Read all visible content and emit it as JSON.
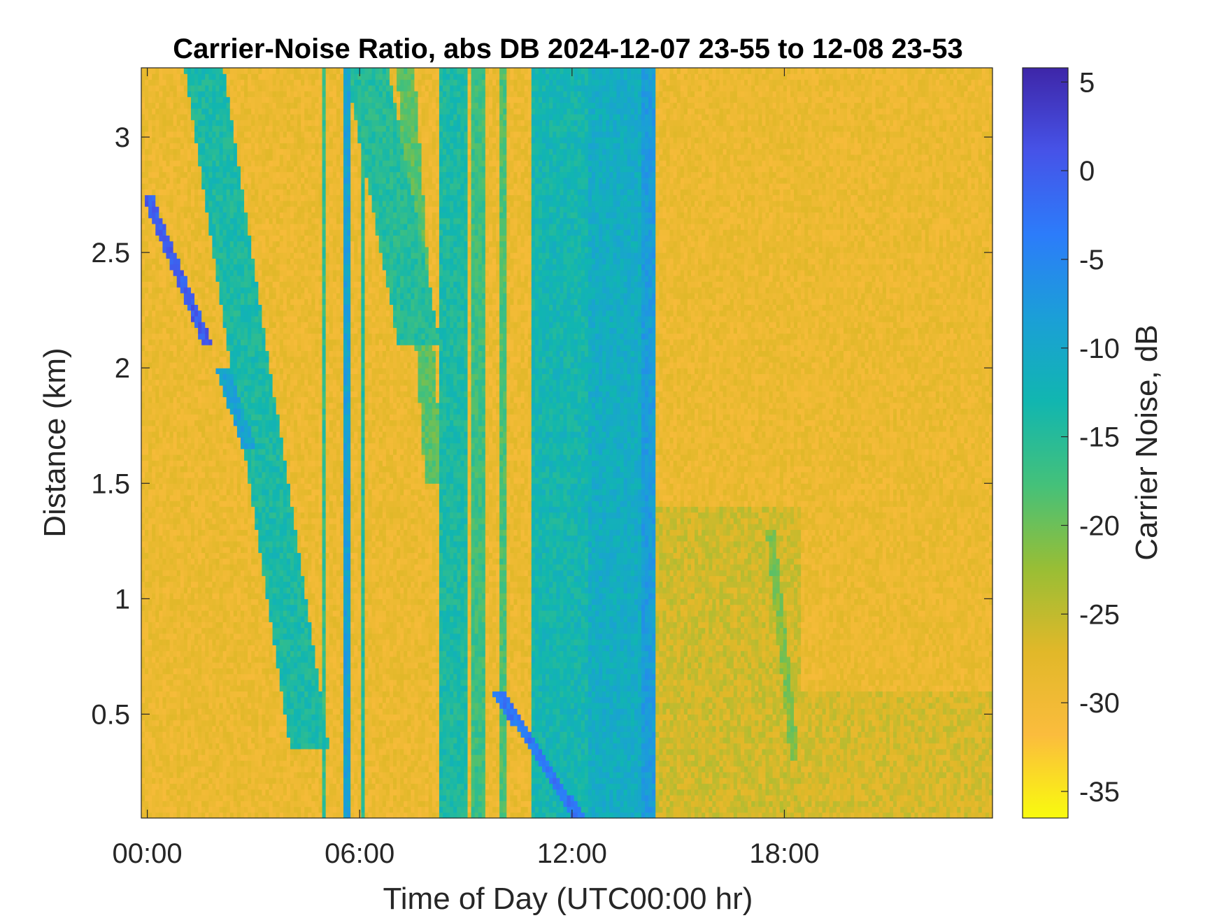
{
  "chart_data": {
    "type": "heatmap",
    "title": "Carrier-Noise Ratio, abs DB 2024-12-07 23-55 to 12-08 23-53",
    "xlabel": "Time of Day (UTC00:00 hr)",
    "ylabel": "Distance (km)",
    "colorbar_label": "Carrier Noise, dB",
    "xlim": [
      -0.17,
      23.88
    ],
    "ylim": [
      0.05,
      3.3
    ],
    "clim": [
      -36.5,
      5.8
    ],
    "x_ticks": [
      0,
      6,
      12,
      18
    ],
    "x_tick_labels": [
      "00:00",
      "06:00",
      "12:00",
      "18:00"
    ],
    "y_ticks": [
      0.5,
      1,
      1.5,
      2,
      2.5,
      3
    ],
    "y_tick_labels": [
      "0.5",
      "1",
      "1.5",
      "2",
      "2.5",
      "3"
    ],
    "colorbar_ticks": [
      5,
      0,
      -5,
      -10,
      -15,
      -20,
      -25,
      -30,
      -35
    ],
    "colorbar_tick_labels": [
      "5",
      "0",
      "-5",
      "-10",
      "-15",
      "-20",
      "-25",
      "-30",
      "-35"
    ],
    "colormap": [
      "#f9fb0e",
      "#fbbc3d",
      "#e1b829",
      "#98be35",
      "#44c17a",
      "#11b6b0",
      "#1b9fd7",
      "#2c7cfa",
      "#4653e8",
      "#3e26a8"
    ],
    "background_level_db": -29,
    "features": [
      {
        "kind": "band",
        "t_start": 8.2,
        "t_end": 9.05,
        "db": -14
      },
      {
        "kind": "band",
        "t_start": 9.1,
        "t_end": 9.6,
        "db": -17
      },
      {
        "kind": "band",
        "t_start": 10.9,
        "t_end": 12.5,
        "db": -13
      },
      {
        "kind": "band",
        "t_start": 12.5,
        "t_end": 14.35,
        "db": -11
      },
      {
        "kind": "band",
        "t_start": 14.0,
        "t_end": 14.35,
        "db": -8
      },
      {
        "kind": "band",
        "t_start": 5.55,
        "t_end": 5.75,
        "db": -9
      },
      {
        "kind": "band",
        "t_start": 4.9,
        "t_end": 5.05,
        "db": -16
      },
      {
        "kind": "band",
        "t_start": 6.05,
        "t_end": 6.15,
        "db": -15
      },
      {
        "kind": "band",
        "t_start": 9.95,
        "t_end": 10.15,
        "db": -18
      },
      {
        "kind": "slant",
        "t_top": 1.6,
        "t_bottom": 4.6,
        "d_top": 3.3,
        "d_bottom": 0.35,
        "width_h": 1.1,
        "db": -14
      },
      {
        "kind": "slant",
        "t_top": 2.1,
        "t_bottom": 2.9,
        "d_top": 2.0,
        "d_bottom": 1.65,
        "width_h": 0.4,
        "db": -9
      },
      {
        "kind": "slant",
        "t_top": 6.2,
        "t_bottom": 7.7,
        "d_top": 3.3,
        "d_bottom": 2.1,
        "width_h": 1.2,
        "db": -15
      },
      {
        "kind": "slant",
        "t_top": 9.9,
        "t_bottom": 12.2,
        "d_top": 0.6,
        "d_bottom": 0.05,
        "width_h": 0.35,
        "db": -3
      },
      {
        "kind": "slant",
        "t_top": 0.0,
        "t_bottom": 1.7,
        "d_top": 2.75,
        "d_bottom": 2.1,
        "width_h": 0.3,
        "db": 0
      },
      {
        "kind": "slant",
        "t_top": 7.3,
        "t_bottom": 8.1,
        "d_top": 3.3,
        "d_bottom": 1.5,
        "width_h": 0.5,
        "db": -19
      },
      {
        "kind": "slant",
        "t_top": 17.6,
        "t_bottom": 18.3,
        "d_top": 1.3,
        "d_bottom": 0.3,
        "width_h": 0.25,
        "db": -21
      },
      {
        "kind": "region",
        "t_start": 14.35,
        "t_end": 18.5,
        "d_start": 0.05,
        "d_end": 1.4,
        "db": -26
      },
      {
        "kind": "region",
        "t_start": 18.5,
        "t_end": 23.9,
        "d_start": 0.05,
        "d_end": 0.6,
        "db": -26.5
      }
    ]
  }
}
